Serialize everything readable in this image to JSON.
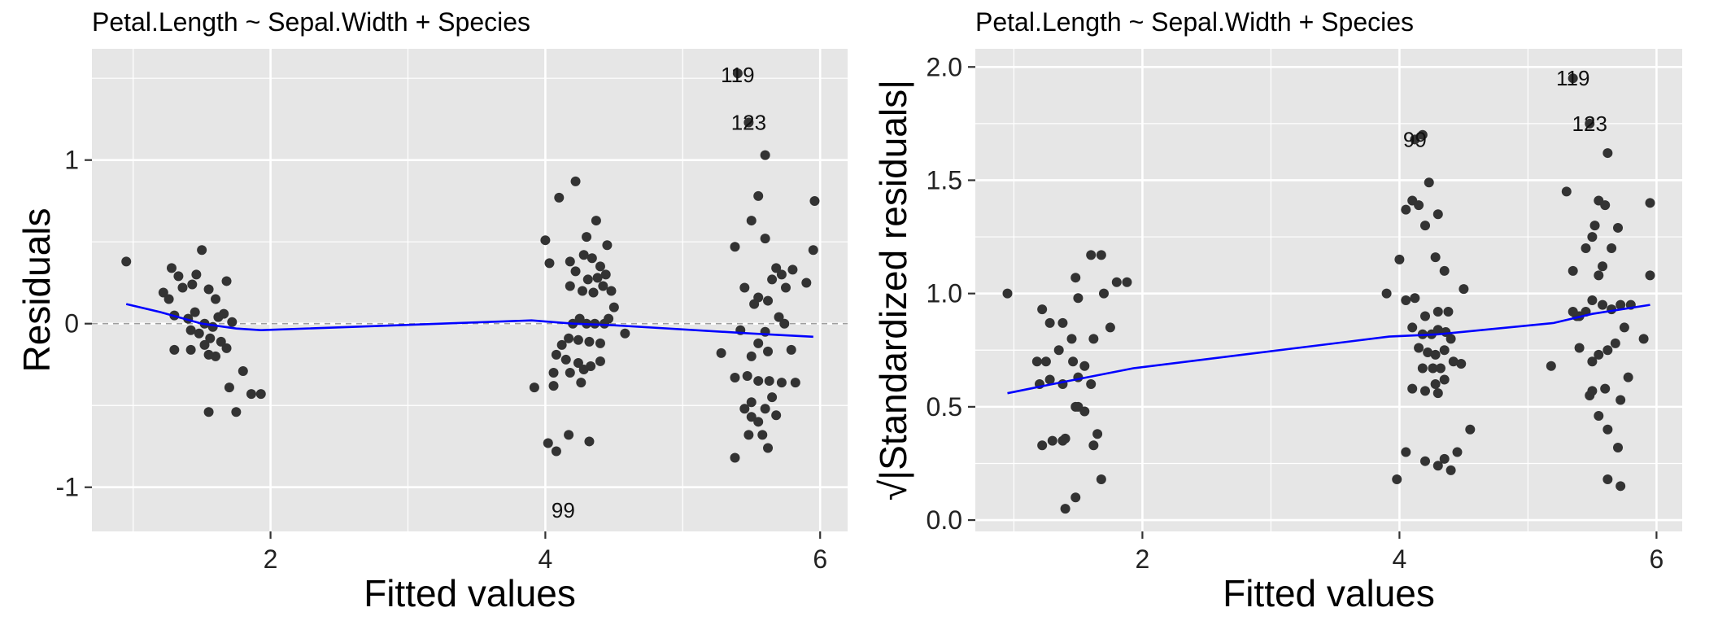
{
  "colors": {
    "panel_background": "#e6e6e6",
    "grid": "#ffffff",
    "points": "#333333",
    "smooth_line": "#0000ff",
    "reference_line": "#9e9e9e"
  },
  "chart_data": [
    {
      "type": "scatter",
      "title": "Petal.Length ~ Sepal.Width + Species",
      "xlabel": "Fitted values",
      "ylabel": "Residuals",
      "xlim": [
        0.7,
        6.2
      ],
      "ylim": [
        -1.27,
        1.68
      ],
      "xticks": [
        2,
        4,
        6
      ],
      "xtick_labels": [
        "2",
        "4",
        "6"
      ],
      "yticks": [
        -1,
        0,
        1
      ],
      "ytick_labels": [
        "-1",
        "0",
        "1"
      ],
      "grid": true,
      "reference_line_y": 0,
      "points": [
        [
          0.95,
          0.38
        ],
        [
          1.22,
          0.19
        ],
        [
          1.28,
          0.34
        ],
        [
          1.33,
          0.29
        ],
        [
          1.26,
          0.15
        ],
        [
          1.36,
          0.22
        ],
        [
          1.43,
          0.24
        ],
        [
          1.5,
          0.45
        ],
        [
          1.46,
          0.3
        ],
        [
          1.55,
          0.21
        ],
        [
          1.6,
          0.15
        ],
        [
          1.3,
          0.05
        ],
        [
          1.4,
          0.03
        ],
        [
          1.45,
          0.07
        ],
        [
          1.52,
          0.0
        ],
        [
          1.58,
          -0.02
        ],
        [
          1.62,
          0.04
        ],
        [
          1.66,
          0.06
        ],
        [
          1.68,
          0.26
        ],
        [
          1.72,
          0.01
        ],
        [
          1.42,
          -0.04
        ],
        [
          1.48,
          -0.06
        ],
        [
          1.56,
          -0.09
        ],
        [
          1.64,
          -0.11
        ],
        [
          1.3,
          -0.16
        ],
        [
          1.42,
          -0.16
        ],
        [
          1.52,
          -0.13
        ],
        [
          1.6,
          -0.2
        ],
        [
          1.68,
          -0.15
        ],
        [
          1.55,
          -0.19
        ],
        [
          1.8,
          -0.29
        ],
        [
          1.7,
          -0.39
        ],
        [
          1.86,
          -0.43
        ],
        [
          1.93,
          -0.43
        ],
        [
          1.55,
          -0.54
        ],
        [
          1.75,
          -0.54
        ],
        [
          3.92,
          -0.39
        ],
        [
          4.0,
          0.51
        ],
        [
          4.03,
          0.37
        ],
        [
          4.1,
          0.77
        ],
        [
          4.22,
          0.87
        ],
        [
          4.3,
          0.53
        ],
        [
          4.37,
          0.63
        ],
        [
          4.45,
          0.48
        ],
        [
          4.18,
          0.38
        ],
        [
          4.28,
          0.42
        ],
        [
          4.34,
          0.4
        ],
        [
          4.4,
          0.35
        ],
        [
          4.22,
          0.32
        ],
        [
          4.31,
          0.27
        ],
        [
          4.38,
          0.28
        ],
        [
          4.44,
          0.3
        ],
        [
          4.18,
          0.23
        ],
        [
          4.27,
          0.2
        ],
        [
          4.35,
          0.19
        ],
        [
          4.42,
          0.23
        ],
        [
          4.48,
          0.2
        ],
        [
          4.5,
          0.1
        ],
        [
          4.46,
          0.03
        ],
        [
          4.43,
          0.0
        ],
        [
          4.36,
          0.0
        ],
        [
          4.3,
          0.0
        ],
        [
          4.25,
          0.03
        ],
        [
          4.2,
          0.0
        ],
        [
          4.58,
          -0.06
        ],
        [
          4.17,
          -0.09
        ],
        [
          4.24,
          -0.1
        ],
        [
          4.32,
          -0.11
        ],
        [
          4.4,
          -0.12
        ],
        [
          4.12,
          -0.13
        ],
        [
          4.08,
          -0.19
        ],
        [
          4.15,
          -0.22
        ],
        [
          4.24,
          -0.24
        ],
        [
          4.33,
          -0.26
        ],
        [
          4.4,
          -0.23
        ],
        [
          4.06,
          -0.3
        ],
        [
          4.18,
          -0.3
        ],
        [
          4.28,
          -0.28
        ],
        [
          4.06,
          -0.38
        ],
        [
          4.26,
          -0.36
        ],
        [
          4.02,
          -0.73
        ],
        [
          4.08,
          -0.78
        ],
        [
          4.17,
          -0.68
        ],
        [
          4.32,
          -0.72
        ],
        [
          5.28,
          -0.18
        ],
        [
          5.38,
          0.47
        ],
        [
          5.45,
          0.22
        ],
        [
          5.5,
          0.63
        ],
        [
          5.55,
          0.78
        ],
        [
          5.6,
          1.03
        ],
        [
          5.6,
          0.52
        ],
        [
          5.68,
          0.34
        ],
        [
          5.72,
          0.3
        ],
        [
          5.8,
          0.33
        ],
        [
          5.75,
          0.22
        ],
        [
          5.65,
          0.27
        ],
        [
          5.55,
          0.16
        ],
        [
          5.52,
          0.12
        ],
        [
          5.62,
          0.14
        ],
        [
          5.7,
          0.04
        ],
        [
          5.74,
          0.0
        ],
        [
          5.6,
          -0.05
        ],
        [
          5.9,
          0.25
        ],
        [
          5.95,
          0.45
        ],
        [
          5.96,
          0.75
        ],
        [
          5.42,
          -0.04
        ],
        [
          5.55,
          -0.12
        ],
        [
          5.62,
          -0.17
        ],
        [
          5.5,
          -0.2
        ],
        [
          5.38,
          -0.33
        ],
        [
          5.47,
          -0.32
        ],
        [
          5.55,
          -0.35
        ],
        [
          5.63,
          -0.35
        ],
        [
          5.72,
          -0.36
        ],
        [
          5.79,
          -0.16
        ],
        [
          5.82,
          -0.36
        ],
        [
          5.45,
          -0.52
        ],
        [
          5.5,
          -0.57
        ],
        [
          5.6,
          -0.52
        ],
        [
          5.68,
          -0.56
        ],
        [
          5.55,
          -0.6
        ],
        [
          5.48,
          -0.68
        ],
        [
          5.58,
          -0.68
        ],
        [
          5.62,
          -0.76
        ],
        [
          5.65,
          -0.45
        ],
        [
          5.38,
          -0.82
        ],
        [
          5.5,
          -0.48
        ],
        [
          5.4,
          1.53
        ],
        [
          5.48,
          1.23
        ]
      ],
      "smooth_line": [
        [
          0.95,
          0.12
        ],
        [
          1.2,
          0.07
        ],
        [
          1.5,
          0.0
        ],
        [
          1.75,
          -0.03
        ],
        [
          1.93,
          -0.04
        ],
        [
          3.9,
          0.02
        ],
        [
          4.2,
          0.0
        ],
        [
          4.5,
          -0.01
        ],
        [
          5.5,
          -0.06
        ],
        [
          5.95,
          -0.08
        ]
      ],
      "annotations": [
        {
          "label": "119",
          "x": 5.4,
          "y": 1.52
        },
        {
          "label": "123",
          "x": 5.48,
          "y": 1.23
        },
        {
          "label": "99",
          "x": 4.13,
          "y": -1.14
        }
      ]
    },
    {
      "type": "scatter",
      "title": "Petal.Length ~ Sepal.Width + Species",
      "xlabel": "Fitted values",
      "ylabel": "√|Standardized residuals|",
      "xlim": [
        0.7,
        6.2
      ],
      "ylim": [
        -0.05,
        2.08
      ],
      "xticks": [
        2,
        4,
        6
      ],
      "xtick_labels": [
        "2",
        "4",
        "6"
      ],
      "yticks": [
        0.0,
        0.5,
        1.0,
        1.5,
        2.0
      ],
      "ytick_labels": [
        "0.0",
        "0.5",
        "1.0",
        "1.5",
        "2.0"
      ],
      "grid": true,
      "points": [
        [
          0.95,
          1.0
        ],
        [
          1.22,
          0.93
        ],
        [
          1.28,
          0.87
        ],
        [
          1.38,
          0.87
        ],
        [
          1.48,
          1.07
        ],
        [
          1.6,
          1.17
        ],
        [
          1.5,
          0.98
        ],
        [
          1.68,
          1.17
        ],
        [
          1.7,
          1.0
        ],
        [
          1.8,
          1.05
        ],
        [
          1.88,
          1.05
        ],
        [
          1.75,
          0.85
        ],
        [
          1.62,
          0.8
        ],
        [
          1.45,
          0.8
        ],
        [
          1.35,
          0.75
        ],
        [
          1.18,
          0.7
        ],
        [
          1.25,
          0.7
        ],
        [
          1.46,
          0.7
        ],
        [
          1.55,
          0.68
        ],
        [
          1.5,
          0.63
        ],
        [
          1.6,
          0.6
        ],
        [
          1.28,
          0.62
        ],
        [
          1.38,
          0.6
        ],
        [
          1.2,
          0.6
        ],
        [
          1.48,
          0.5
        ],
        [
          1.5,
          0.5
        ],
        [
          1.55,
          0.48
        ],
        [
          1.65,
          0.38
        ],
        [
          1.62,
          0.33
        ],
        [
          1.38,
          0.35
        ],
        [
          1.3,
          0.35
        ],
        [
          1.22,
          0.33
        ],
        [
          1.4,
          0.36
        ],
        [
          1.68,
          0.18
        ],
        [
          1.48,
          0.1
        ],
        [
          1.4,
          0.05
        ],
        [
          3.9,
          1.0
        ],
        [
          4.0,
          1.15
        ],
        [
          4.05,
          1.37
        ],
        [
          4.1,
          1.41
        ],
        [
          4.15,
          1.39
        ],
        [
          4.23,
          1.49
        ],
        [
          4.3,
          1.35
        ],
        [
          4.2,
          1.3
        ],
        [
          4.28,
          1.16
        ],
        [
          4.35,
          1.1
        ],
        [
          4.05,
          0.97
        ],
        [
          4.12,
          0.98
        ],
        [
          4.2,
          0.9
        ],
        [
          4.3,
          0.92
        ],
        [
          4.38,
          0.92
        ],
        [
          4.1,
          0.85
        ],
        [
          4.18,
          0.82
        ],
        [
          4.25,
          0.82
        ],
        [
          4.3,
          0.84
        ],
        [
          4.36,
          0.83
        ],
        [
          4.4,
          0.8
        ],
        [
          4.15,
          0.76
        ],
        [
          4.22,
          0.74
        ],
        [
          4.28,
          0.73
        ],
        [
          4.35,
          0.75
        ],
        [
          4.42,
          0.7
        ],
        [
          4.18,
          0.67
        ],
        [
          4.26,
          0.67
        ],
        [
          4.32,
          0.67
        ],
        [
          4.48,
          0.69
        ],
        [
          4.1,
          0.58
        ],
        [
          4.2,
          0.57
        ],
        [
          4.28,
          0.6
        ],
        [
          4.35,
          0.62
        ],
        [
          4.3,
          0.56
        ],
        [
          4.55,
          0.4
        ],
        [
          4.05,
          0.3
        ],
        [
          4.2,
          0.26
        ],
        [
          4.3,
          0.24
        ],
        [
          4.35,
          0.27
        ],
        [
          4.4,
          0.22
        ],
        [
          3.98,
          0.18
        ],
        [
          4.45,
          0.3
        ],
        [
          4.5,
          1.02
        ],
        [
          4.12,
          1.68
        ],
        [
          4.18,
          1.7
        ],
        [
          5.18,
          0.68
        ],
        [
          5.3,
          1.45
        ],
        [
          5.35,
          1.1
        ],
        [
          5.38,
          0.9
        ],
        [
          5.45,
          1.2
        ],
        [
          5.5,
          1.25
        ],
        [
          5.52,
          1.3
        ],
        [
          5.55,
          1.41
        ],
        [
          5.6,
          1.39
        ],
        [
          5.62,
          1.62
        ],
        [
          5.65,
          1.2
        ],
        [
          5.7,
          1.29
        ],
        [
          5.58,
          1.12
        ],
        [
          5.55,
          1.08
        ],
        [
          5.5,
          0.97
        ],
        [
          5.58,
          0.95
        ],
        [
          5.65,
          0.93
        ],
        [
          5.72,
          0.95
        ],
        [
          5.8,
          0.95
        ],
        [
          5.45,
          0.92
        ],
        [
          5.4,
          0.9
        ],
        [
          5.35,
          0.92
        ],
        [
          5.75,
          0.85
        ],
        [
          5.9,
          0.8
        ],
        [
          5.95,
          1.08
        ],
        [
          5.95,
          1.4
        ],
        [
          5.4,
          0.76
        ],
        [
          5.5,
          0.7
        ],
        [
          5.55,
          0.73
        ],
        [
          5.62,
          0.75
        ],
        [
          5.68,
          0.78
        ],
        [
          5.78,
          0.63
        ],
        [
          5.48,
          0.55
        ],
        [
          5.5,
          0.57
        ],
        [
          5.6,
          0.58
        ],
        [
          5.72,
          0.53
        ],
        [
          5.55,
          0.46
        ],
        [
          5.62,
          0.4
        ],
        [
          5.7,
          0.32
        ],
        [
          5.62,
          0.18
        ],
        [
          5.72,
          0.15
        ],
        [
          5.35,
          1.95
        ],
        [
          5.48,
          1.75
        ]
      ],
      "smooth_line": [
        [
          0.95,
          0.56
        ],
        [
          1.3,
          0.6
        ],
        [
          1.93,
          0.67
        ],
        [
          3.92,
          0.81
        ],
        [
          4.3,
          0.82
        ],
        [
          5.2,
          0.87
        ],
        [
          5.5,
          0.91
        ],
        [
          5.95,
          0.95
        ]
      ],
      "annotations": [
        {
          "label": "119",
          "x": 5.35,
          "y": 1.95
        },
        {
          "label": "123",
          "x": 5.48,
          "y": 1.75
        },
        {
          "label": "99",
          "x": 4.12,
          "y": 1.68
        }
      ]
    }
  ]
}
